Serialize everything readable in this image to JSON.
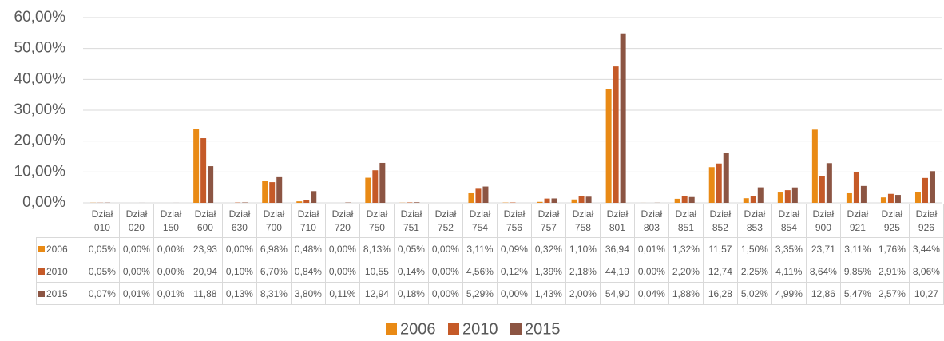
{
  "chart_data": {
    "type": "bar",
    "categories": [
      "Dział 010",
      "Dział 020",
      "Dział 150",
      "Dział 600",
      "Dział 630",
      "Dział 700",
      "Dział 710",
      "Dział 720",
      "Dział 750",
      "Dział 751",
      "Dział 752",
      "Dział 754",
      "Dział 756",
      "Dział 757",
      "Dział 758",
      "Dział 801",
      "Dział 803",
      "Dział 851",
      "Dział 852",
      "Dział 853",
      "Dział 854",
      "Dział 900",
      "Dział 921",
      "Dział 925",
      "Dział 926"
    ],
    "series": [
      {
        "name": "2006",
        "color": "#e98a15",
        "values": [
          0.05,
          0,
          0,
          23.93,
          0,
          6.98,
          0.48,
          0,
          8.13,
          0.05,
          0,
          3.11,
          0.09,
          0.32,
          1.1,
          36.94,
          0.01,
          1.32,
          11.57,
          1.5,
          3.35,
          23.71,
          3.11,
          1.76,
          3.44
        ],
        "value_labels": [
          "0,05%",
          "0,00%",
          "0,00%",
          "23,93",
          "0,00%",
          "6,98%",
          "0,48%",
          "0,00%",
          "8,13%",
          "0,05%",
          "0,00%",
          "3,11%",
          "0,09%",
          "0,32%",
          "1,10%",
          "36,94",
          "0,01%",
          "1,32%",
          "11,57",
          "1,50%",
          "3,35%",
          "23,71",
          "3,11%",
          "1,76%",
          "3,44%"
        ]
      },
      {
        "name": "2010",
        "color": "#c55a28",
        "values": [
          0.05,
          0,
          0,
          20.94,
          0.1,
          6.7,
          0.84,
          0,
          10.55,
          0.14,
          0,
          4.56,
          0.12,
          1.39,
          2.18,
          44.19,
          0,
          2.2,
          12.74,
          2.25,
          4.11,
          8.64,
          9.85,
          2.91,
          8.06
        ],
        "value_labels": [
          "0,05%",
          "0,00%",
          "0,00%",
          "20,94",
          "0,10%",
          "6,70%",
          "0,84%",
          "0,00%",
          "10,55",
          "0,14%",
          "0,00%",
          "4,56%",
          "0,12%",
          "1,39%",
          "2,18%",
          "44,19",
          "0,00%",
          "2,20%",
          "12,74",
          "2,25%",
          "4,11%",
          "8,64%",
          "9,85%",
          "2,91%",
          "8,06%"
        ]
      },
      {
        "name": "2015",
        "color": "#8c5543",
        "values": [
          0.07,
          0.01,
          0.01,
          11.88,
          0.13,
          8.31,
          3.8,
          0.11,
          12.94,
          0.18,
          0,
          5.29,
          0,
          1.43,
          2.0,
          54.9,
          0.04,
          1.88,
          16.28,
          5.02,
          4.99,
          12.86,
          5.47,
          2.57,
          10.27
        ],
        "value_labels": [
          "0,07%",
          "0,01%",
          "0,01%",
          "11,88",
          "0,13%",
          "8,31%",
          "3,80%",
          "0,11%",
          "12,94",
          "0,18%",
          "0,00%",
          "5,29%",
          "0,00%",
          "1,43%",
          "2,00%",
          "54,90",
          "0,04%",
          "1,88%",
          "16,28",
          "5,02%",
          "4,99%",
          "12,86",
          "5,47%",
          "2,57%",
          "10,27"
        ]
      }
    ],
    "ylim": [
      0,
      60
    ],
    "yticks": [
      {
        "value": 0,
        "label": "0,00%"
      },
      {
        "value": 10,
        "label": "10,00%"
      },
      {
        "value": 20,
        "label": "20,00%"
      },
      {
        "value": 30,
        "label": "30,00%"
      },
      {
        "value": 40,
        "label": "40,00%"
      },
      {
        "value": 50,
        "label": "50,00%"
      },
      {
        "value": 60,
        "label": "60,00%"
      }
    ],
    "grid": true,
    "legend": "bottom"
  }
}
